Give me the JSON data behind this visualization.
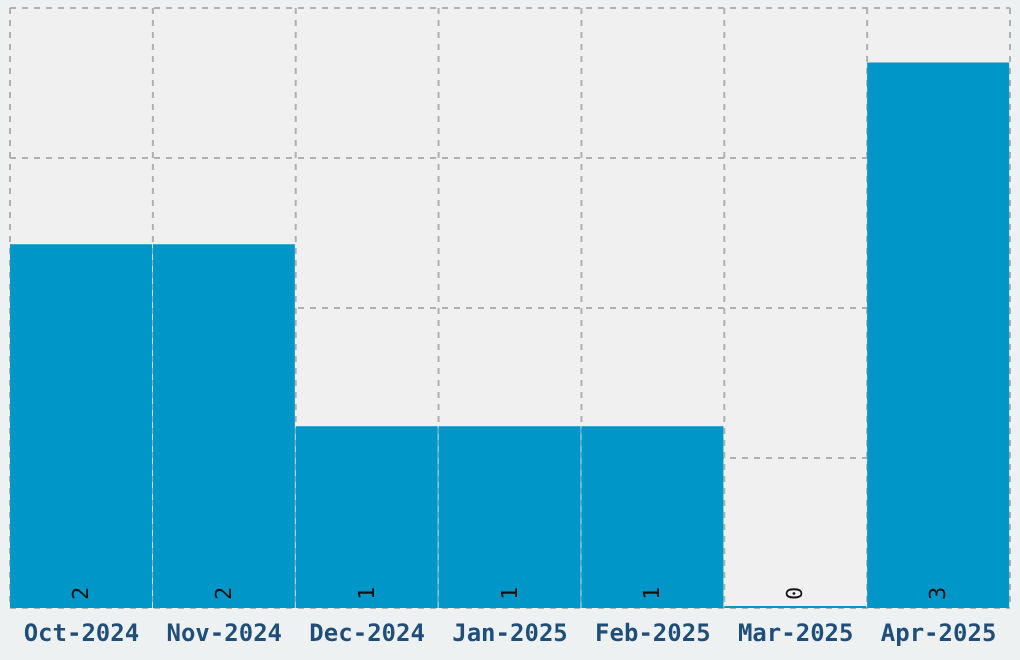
{
  "chart_data": {
    "type": "bar",
    "categories": [
      "Oct-2024",
      "Nov-2024",
      "Dec-2024",
      "Jan-2025",
      "Feb-2025",
      "Mar-2025",
      "Apr-2025"
    ],
    "values": [
      2,
      2,
      1,
      1,
      1,
      0,
      3
    ],
    "color": "#0096c8",
    "ylim": [
      0,
      3.3
    ],
    "grid": true,
    "data_labels": true,
    "tick_labels": "x"
  }
}
